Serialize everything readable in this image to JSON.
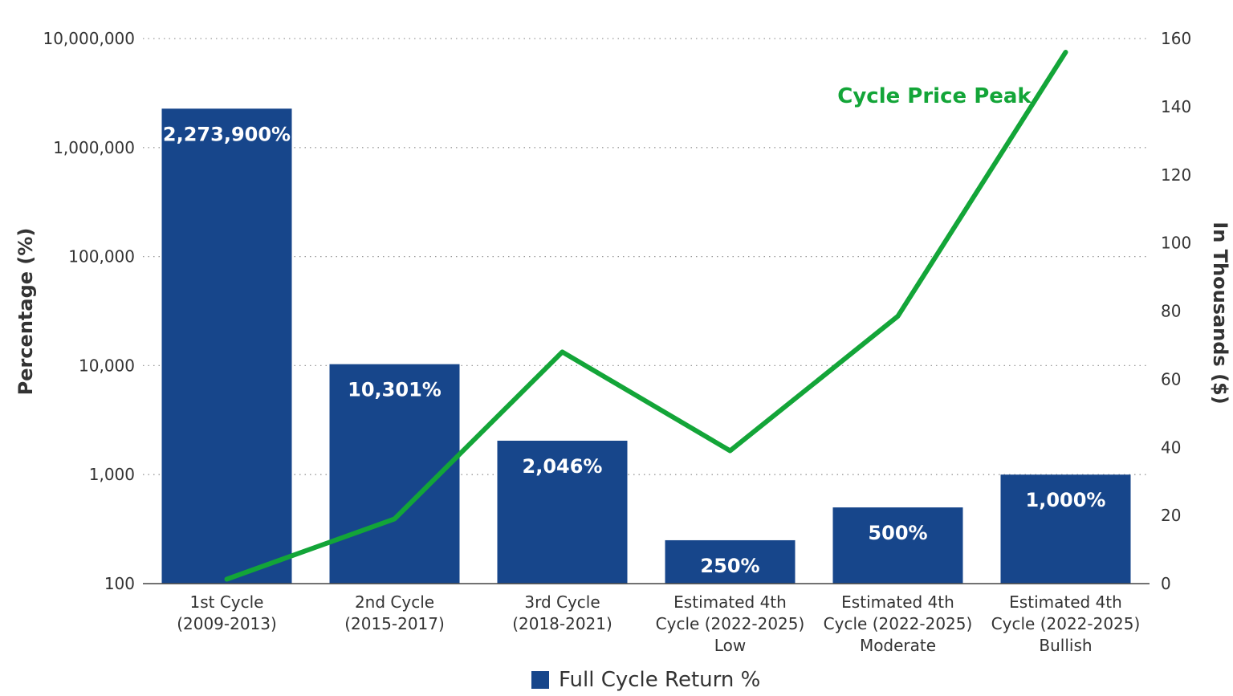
{
  "chart_data": {
    "type": "bar",
    "categories": [
      [
        "1st Cycle",
        "(2009-2013)"
      ],
      [
        "2nd Cycle",
        "(2015-2017)"
      ],
      [
        "3rd Cycle",
        "(2018-2021)"
      ],
      [
        "Estimated 4th",
        "Cycle (2022-2025)",
        "Low"
      ],
      [
        "Estimated 4th",
        "Cycle (2022-2025)",
        "Moderate"
      ],
      [
        "Estimated 4th",
        "Cycle (2022-2025)",
        "Bullish"
      ]
    ],
    "series": [
      {
        "name": "Full Cycle Return %",
        "type": "bar",
        "axis": "left",
        "values": [
          2273900,
          10301,
          2046,
          250,
          500,
          1000
        ],
        "labels": [
          "2,273,900%",
          "10,301%",
          "2,046%",
          "250%",
          "500%",
          "1,000%"
        ],
        "color": "#17468b"
      },
      {
        "name": "Cycle Price Peak",
        "type": "line",
        "axis": "right",
        "values": [
          1.3,
          19,
          68,
          39,
          78.5,
          156
        ],
        "color": "#13a538"
      }
    ],
    "y_left": {
      "label": "Percentage (%)",
      "scale": "log",
      "range": [
        100,
        10000000
      ],
      "ticks": [
        100,
        1000,
        10000,
        100000,
        1000000,
        10000000
      ],
      "tick_labels": [
        "100",
        "1,000",
        "10,000",
        "100,000",
        "1,000,000",
        "10,000,000"
      ]
    },
    "y_right": {
      "label": "In Thousands ($)",
      "scale": "linear",
      "range": [
        0,
        160
      ],
      "ticks": [
        0,
        20,
        40,
        60,
        80,
        100,
        120,
        140,
        160
      ],
      "tick_labels": [
        "0",
        "20",
        "40",
        "60",
        "80",
        "100",
        "120",
        "140",
        "160"
      ]
    },
    "grid": true,
    "grid_style": "dotted",
    "legend": {
      "position": "bottom-center",
      "entries": [
        "Full Cycle Return %"
      ]
    }
  }
}
